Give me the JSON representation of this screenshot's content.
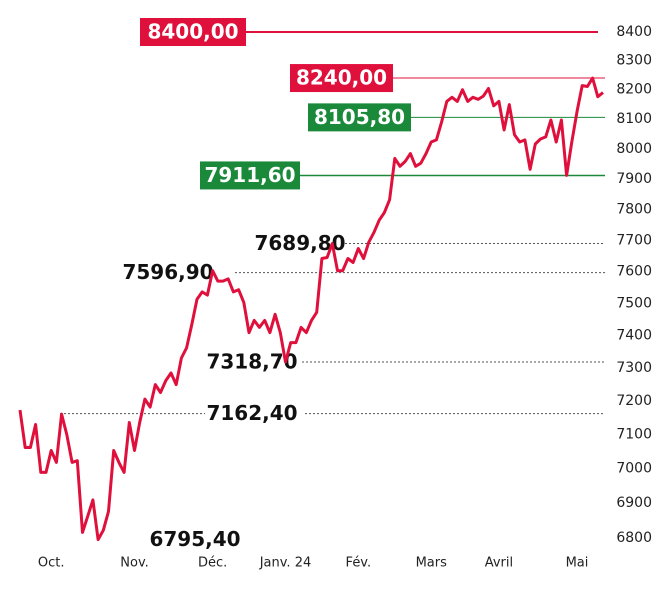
{
  "chart_data": {
    "type": "line",
    "log_scale": true,
    "categories": [
      null,
      null,
      null,
      null,
      null,
      null,
      "Oct.",
      null,
      null,
      null,
      null,
      null,
      null,
      null,
      null,
      null,
      null,
      null,
      null,
      null,
      null,
      null,
      "Nov.",
      null,
      null,
      null,
      null,
      null,
      null,
      null,
      null,
      null,
      null,
      null,
      null,
      null,
      null,
      "Déc.",
      null,
      null,
      null,
      null,
      null,
      null,
      null,
      null,
      null,
      null,
      null,
      null,
      null,
      "Janv. 24",
      null,
      null,
      null,
      null,
      null,
      null,
      null,
      null,
      null,
      null,
      null,
      null,
      null,
      "Fév.",
      null,
      null,
      null,
      null,
      null,
      null,
      null,
      null,
      null,
      null,
      null,
      null,
      null,
      "Mars",
      null,
      null,
      null,
      null,
      null,
      null,
      null,
      null,
      null,
      null,
      null,
      null,
      "Avril",
      null,
      null,
      null,
      null,
      null,
      null,
      null,
      null,
      null,
      null,
      null,
      null,
      null,
      null,
      "Mai",
      null,
      null,
      null,
      null,
      null
    ],
    "series": [
      {
        "color": "#e0103c",
        "values": [
          7173,
          7062,
          7062,
          7130,
          6989,
          6989,
          7053,
          7018,
          7161,
          7100,
          7018,
          7023,
          6816,
          6862,
          6909,
          6795.4,
          6822,
          6876,
          7053,
          7018,
          6989,
          7136,
          7053,
          7136,
          7206,
          7182,
          7250,
          7226,
          7262,
          7285,
          7250,
          7331,
          7362,
          7434,
          7513,
          7536,
          7526,
          7603,
          7570,
          7570,
          7577,
          7536,
          7543,
          7503,
          7409,
          7447,
          7425,
          7447,
          7409,
          7466,
          7409,
          7318.7,
          7378,
          7378,
          7425,
          7409,
          7447,
          7472,
          7642,
          7645,
          7689.8,
          7603,
          7603,
          7642,
          7629,
          7674,
          7642,
          7694,
          7726,
          7765,
          7790,
          7832,
          7968,
          7942,
          7958,
          7984,
          7942,
          7952,
          7984,
          8023,
          8030,
          8090,
          8160,
          8174,
          8160,
          8200,
          8160,
          8174,
          8167,
          8178,
          8204,
          8145,
          8160,
          8063,
          8149,
          8047,
          8023,
          8030,
          7932,
          8016,
          8033,
          8040,
          8097,
          8023,
          8097,
          7911.6,
          8023,
          8125,
          8214,
          8211,
          8240,
          8176,
          8190
        ]
      }
    ],
    "ylim": [
      6800,
      8400
    ],
    "yticks": [
      6800,
      6900,
      7000,
      7100,
      7200,
      7300,
      7400,
      7500,
      7600,
      7700,
      7800,
      7900,
      8000,
      8100,
      8200,
      8300,
      8400
    ],
    "annotations": [
      {
        "value": 8400,
        "label": "8400,00",
        "color": "#e0103c"
      },
      {
        "value": 8240,
        "label": "8240,00",
        "color": "#e0103c"
      },
      {
        "value": 8105.8,
        "label": "8105,80",
        "color": "#1a8a3a"
      },
      {
        "value": 7911.6,
        "label": "7911,60",
        "color": "#1a8a3a"
      },
      {
        "value": 7689.8,
        "label": "7689,80"
      },
      {
        "value": 7596.9,
        "label": "7596,90"
      },
      {
        "value": 7318.7,
        "label": "7318,70"
      },
      {
        "value": 7162.4,
        "label": "7162,40"
      },
      {
        "value": 6795.4,
        "label": "6795,40"
      }
    ]
  }
}
